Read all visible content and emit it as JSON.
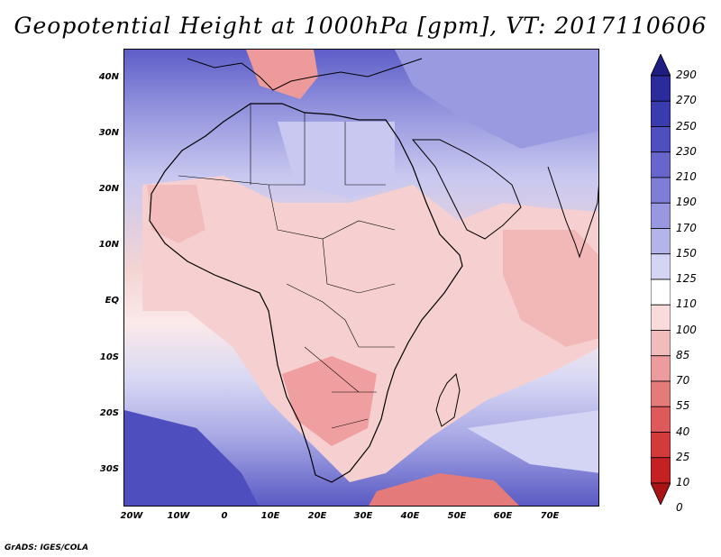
{
  "title": "Geopotential Height at 1000hPa [gpm], VT: 2017110606",
  "footer": "GrADS: IGES/COLA",
  "lat_labels": [
    "40N",
    "30N",
    "20N",
    "10N",
    "EQ",
    "10S",
    "20S",
    "30S"
  ],
  "lon_labels": [
    "20W",
    "10W",
    "0",
    "10E",
    "20E",
    "30E",
    "40E",
    "50E",
    "60E",
    "70E"
  ],
  "colorbar": {
    "levels": [
      "290",
      "270",
      "250",
      "230",
      "210",
      "190",
      "170",
      "150",
      "125",
      "110",
      "100",
      "85",
      "70",
      "55",
      "40",
      "25",
      "10",
      "0"
    ],
    "colors": [
      "#1e1e82",
      "#2b2b9c",
      "#3b3bb0",
      "#4f4fbf",
      "#6666cc",
      "#7e7ed6",
      "#9898e0",
      "#b4b4ea",
      "#d4d4f4",
      "#ffffff",
      "#f8dcdc",
      "#f2bcbc",
      "#ec9c9c",
      "#e57a7a",
      "#de5a5a",
      "#d33a3a",
      "#c42222",
      "#a81414"
    ]
  }
}
